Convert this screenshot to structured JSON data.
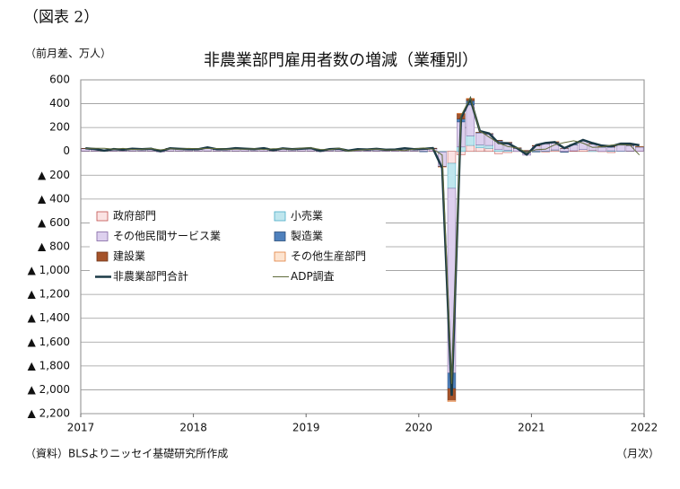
{
  "header": {
    "label": "（図表 2）"
  },
  "footer": {
    "source": "（資料）BLSよりニッセイ基礎研究所作成",
    "unit": "（月次）"
  },
  "chart_data": {
    "type": "bar",
    "stacked": true,
    "title": "非農業部門雇用者数の増減（業種別）",
    "y_label": "（前月差、万人）",
    "x": [
      2017.042,
      2017.125,
      2017.208,
      2017.292,
      2017.375,
      2017.458,
      2017.542,
      2017.625,
      2017.708,
      2017.792,
      2017.875,
      2017.958,
      2018.042,
      2018.125,
      2018.208,
      2018.292,
      2018.375,
      2018.458,
      2018.542,
      2018.625,
      2018.708,
      2018.792,
      2018.875,
      2018.958,
      2019.042,
      2019.125,
      2019.208,
      2019.292,
      2019.375,
      2019.458,
      2019.542,
      2019.625,
      2019.708,
      2019.792,
      2019.875,
      2019.958,
      2020.042,
      2020.125,
      2020.208,
      2020.292,
      2020.375,
      2020.458,
      2020.542,
      2020.625,
      2020.708,
      2020.792,
      2020.875,
      2020.958,
      2021.042,
      2021.125,
      2021.208,
      2021.292,
      2021.375,
      2021.458,
      2021.542,
      2021.625,
      2021.708,
      2021.792,
      2021.875,
      2021.958
    ],
    "xlim": [
      2017,
      2022
    ],
    "xticks": [
      2017,
      2018,
      2019,
      2020,
      2021,
      2022
    ],
    "ylim": [
      -2200,
      600
    ],
    "yticks": [
      600,
      400,
      200,
      0,
      {
        "value": -200,
        "label": "▲ 200"
      },
      {
        "value": -400,
        "label": "▲ 400"
      },
      {
        "value": -600,
        "label": "▲ 600"
      },
      {
        "value": -800,
        "label": "▲ 800"
      },
      {
        "value": -1000,
        "label": "▲ 1,000"
      },
      {
        "value": -1200,
        "label": "▲ 1,200"
      },
      {
        "value": -1400,
        "label": "▲ 1,400"
      },
      {
        "value": -1600,
        "label": "▲ 1,600"
      },
      {
        "value": -1800,
        "label": "▲ 1,800"
      },
      {
        "value": -2000,
        "label": "▲ 2,000"
      },
      {
        "value": -2200,
        "label": "▲ 2,200"
      }
    ],
    "grid": true,
    "series": [
      {
        "name": "政府部門",
        "type": "bar",
        "color": "#fbe3e3",
        "stroke": "#c0504d",
        "values": [
          2,
          2,
          2,
          2,
          2,
          2,
          2,
          2,
          2,
          2,
          2,
          2,
          2,
          2,
          2,
          2,
          2,
          2,
          2,
          2,
          2,
          2,
          2,
          2,
          2,
          2,
          2,
          2,
          2,
          2,
          2,
          2,
          2,
          2,
          2,
          2,
          2,
          2,
          -1,
          -100,
          -30,
          50,
          30,
          25,
          -20,
          -10,
          -1,
          -2,
          5,
          -5,
          10,
          -3,
          5,
          15,
          10,
          -2,
          -10,
          0,
          2,
          1
        ]
      },
      {
        "name": "小売業",
        "type": "bar",
        "color": "#bfe6ee",
        "stroke": "#4bacc6",
        "values": [
          1,
          1,
          1,
          1,
          1,
          1,
          1,
          1,
          1,
          1,
          1,
          1,
          1,
          1,
          1,
          1,
          1,
          1,
          1,
          1,
          1,
          1,
          1,
          1,
          1,
          1,
          1,
          1,
          1,
          1,
          1,
          1,
          1,
          1,
          1,
          1,
          -2,
          0,
          -5,
          -210,
          37,
          80,
          25,
          25,
          15,
          10,
          0,
          1,
          -4,
          3,
          3,
          -1,
          0,
          1,
          -1,
          0,
          5,
          2,
          1,
          0
        ]
      },
      {
        "name": "その他民間サービス業",
        "type": "bar",
        "color": "#ddd0ee",
        "stroke": "#8064a2",
        "values": [
          20,
          14,
          1,
          14,
          8,
          16,
          13,
          16,
          -5,
          20,
          15,
          12,
          12,
          27,
          12,
          12,
          21,
          17,
          13,
          21,
          5,
          19,
          13,
          17,
          21,
          -2,
          13,
          16,
          0,
          12,
          10,
          15,
          8,
          10,
          20,
          12,
          15,
          21,
          -120,
          -1550,
          210,
          260,
          100,
          95,
          70,
          60,
          25,
          -30,
          40,
          60,
          60,
          25,
          50,
          70,
          50,
          35,
          30,
          50,
          45,
          35
        ]
      },
      {
        "name": "製造業",
        "type": "bar",
        "color": "#4f81bd",
        "stroke": "#2a4d7a",
        "values": [
          1,
          1,
          1,
          1,
          1,
          1,
          1,
          1,
          1,
          1,
          1,
          1,
          1,
          1,
          1,
          1,
          1,
          1,
          1,
          1,
          1,
          1,
          1,
          1,
          1,
          1,
          1,
          1,
          1,
          1,
          1,
          1,
          1,
          1,
          1,
          1,
          -1,
          1,
          -2,
          -130,
          25,
          35,
          3,
          3,
          5,
          3,
          3,
          3,
          -1,
          2,
          5,
          -3,
          3,
          2,
          3,
          3,
          3,
          6,
          3,
          3
        ]
      },
      {
        "name": "建設業",
        "type": "bar",
        "color": "#a5532a",
        "stroke": "#6e3418",
        "values": [
          2,
          2,
          2,
          2,
          2,
          2,
          2,
          2,
          2,
          2,
          2,
          2,
          2,
          2,
          2,
          2,
          2,
          2,
          2,
          2,
          2,
          2,
          2,
          2,
          2,
          2,
          2,
          2,
          2,
          2,
          2,
          2,
          2,
          2,
          2,
          2,
          4,
          3,
          -3,
          -100,
          45,
          17,
          2,
          1,
          3,
          3,
          2,
          4,
          5,
          4,
          3,
          1,
          0,
          1,
          1,
          2,
          2,
          1,
          3,
          2
        ]
      },
      {
        "name": "その他生産部門",
        "type": "bar",
        "color": "#fde4d0",
        "stroke": "#e08040",
        "values": [
          0,
          0,
          0,
          0,
          0,
          0,
          0,
          0,
          0,
          0,
          0,
          0,
          0,
          0,
          0,
          0,
          0,
          0,
          0,
          0,
          0,
          0,
          0,
          0,
          0,
          0,
          0,
          0,
          0,
          0,
          0,
          0,
          0,
          0,
          0,
          0,
          0,
          0,
          -1,
          -10,
          3,
          3,
          0,
          0,
          0,
          0,
          0,
          0,
          0,
          0,
          1,
          0,
          0,
          0,
          1,
          1,
          1,
          1,
          1,
          1
        ]
      },
      {
        "name": "非農業部門合計",
        "type": "line",
        "color": "#1b3a46",
        "width": 2.5,
        "values": [
          26,
          20,
          7,
          20,
          14,
          22,
          19,
          22,
          1,
          26,
          21,
          18,
          18,
          33,
          18,
          18,
          27,
          23,
          19,
          27,
          11,
          25,
          19,
          23,
          27,
          4,
          19,
          22,
          6,
          18,
          16,
          21,
          14,
          16,
          26,
          18,
          21,
          27,
          -140,
          -2050,
          280,
          440,
          170,
          150,
          70,
          68,
          26,
          -27,
          52,
          71,
          78,
          27,
          61,
          96,
          69,
          48,
          42,
          65,
          65,
          51
        ]
      },
      {
        "name": "ADP調査",
        "type": "line",
        "color": "#5f6b3a",
        "width": 1,
        "values": [
          25,
          26,
          26,
          18,
          25,
          16,
          18,
          24,
          13,
          22,
          19,
          25,
          23,
          24,
          24,
          18,
          18,
          18,
          22,
          16,
          23,
          22,
          18,
          27,
          30,
          17,
          13,
          27,
          3,
          10,
          16,
          20,
          13,
          12,
          7,
          20,
          29,
          18,
          -30,
          -1950,
          300,
          450,
          170,
          120,
          70,
          40,
          30,
          -10,
          15,
          18,
          56,
          74,
          89,
          69,
          33,
          37,
          52,
          57,
          53,
          -30
        ]
      }
    ]
  }
}
